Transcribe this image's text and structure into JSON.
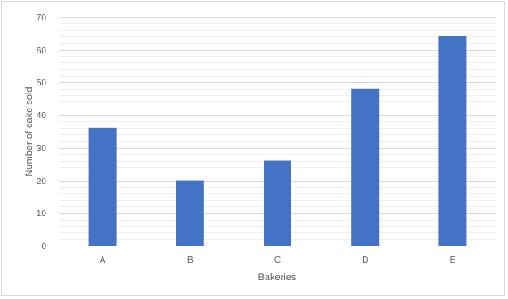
{
  "chart_data": {
    "type": "bar",
    "title": "",
    "xlabel": "Bakeries",
    "ylabel": "Number of cake sold",
    "categories": [
      "A",
      "B",
      "C",
      "D",
      "E"
    ],
    "values": [
      36,
      20,
      26,
      48,
      64
    ],
    "ylim": [
      0,
      70
    ],
    "yticks": [
      0,
      10,
      20,
      30,
      40,
      50,
      60,
      70
    ],
    "minor_gridlines": true,
    "legend": "none",
    "colors": {
      "bar": "#4472c4",
      "major_grid": "#d9d9d9",
      "minor_grid": "#efefef",
      "axis": "#bfbfbf"
    }
  }
}
